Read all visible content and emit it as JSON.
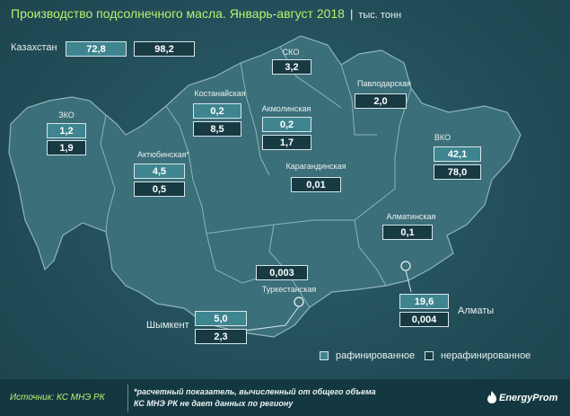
{
  "title": "Производство подсолнечного масла. Январь-август 2018",
  "unit": "тыс. тонн",
  "national": {
    "label": "Казахстан",
    "refined": "72,8",
    "unrefined": "98,2"
  },
  "regions": {
    "zko": {
      "name": "ЗКО",
      "refined": "1,2",
      "unrefined": "1,9"
    },
    "aktobe": {
      "name": "Актюбинская*",
      "refined": "4,5",
      "unrefined": "0,5"
    },
    "kostanay": {
      "name": "Костанайская",
      "refined": "0,2",
      "unrefined": "8,5"
    },
    "sko": {
      "name": "СКО",
      "unrefined": "3,2"
    },
    "akmola": {
      "name": "Акмолинская",
      "refined": "0,2",
      "unrefined": "1,7"
    },
    "pavlodar": {
      "name": "Павлодарская",
      "unrefined": "2,0"
    },
    "karaganda": {
      "name": "Карагандинская",
      "unrefined": "0,01"
    },
    "vko": {
      "name": "ВКО",
      "refined": "42,1",
      "unrefined": "78,0"
    },
    "almaty_reg": {
      "name": "Алматинская",
      "unrefined": "0,1"
    },
    "turkestan": {
      "name": "Туркестанская",
      "unrefined": "0,003"
    },
    "shymkent": {
      "name": "Шымкент",
      "refined": "5,0",
      "unrefined": "2,3"
    },
    "almaty": {
      "name": "Алматы",
      "refined": "19,6",
      "unrefined": "0,004"
    }
  },
  "legend": {
    "refined": "рафинированное",
    "unrefined": "нерафинированное"
  },
  "colors": {
    "refined_fill": "#3e8590",
    "unrefined_fill": "#173a43",
    "map_fill": "#3b6f79",
    "accent": "#b9f06e"
  },
  "footer": {
    "source": "Источник: КС МНЭ РК",
    "note_line1": "*расчетный показатель, вычисленный от общего объема",
    "note_line2": "КС МНЭ РК не дает данных по региону",
    "brand": "EnergyProm",
    "brand_icon": "flame-icon"
  }
}
